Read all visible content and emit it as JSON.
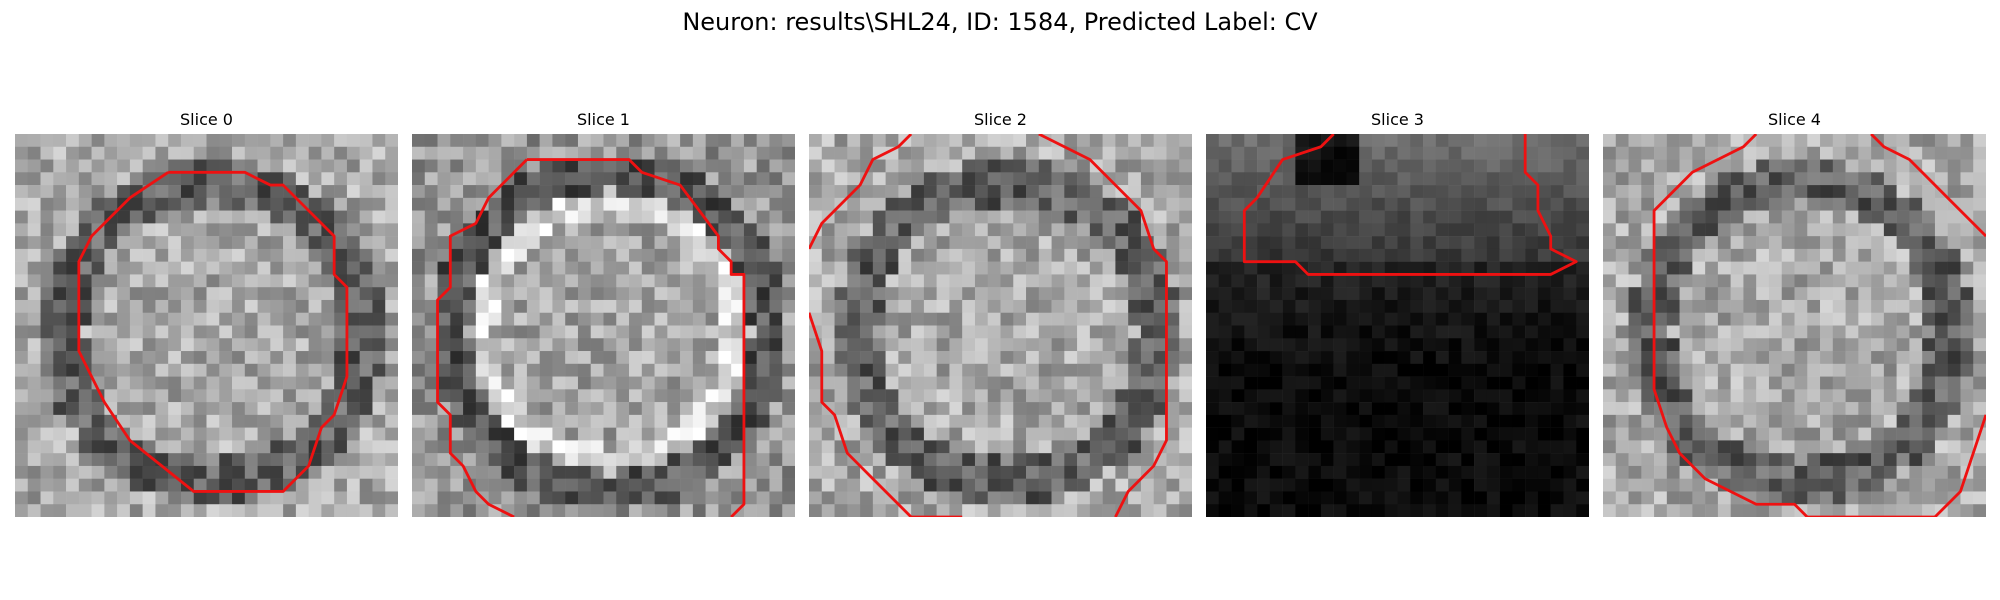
{
  "figure": {
    "title": "Neuron: results\\SHL24, ID: 1584, Predicted Label: CV"
  },
  "panels": [
    {
      "title": "Slice 0",
      "tone": "mid",
      "seed": 11
    },
    {
      "title": "Slice 1",
      "tone": "ring",
      "seed": 23
    },
    {
      "title": "Slice 2",
      "tone": "mid",
      "seed": 37
    },
    {
      "title": "Slice 3",
      "tone": "dark",
      "seed": 53
    },
    {
      "title": "Slice 4",
      "tone": "mid",
      "seed": 71
    }
  ],
  "colors": {
    "contour": "#ee1111"
  }
}
